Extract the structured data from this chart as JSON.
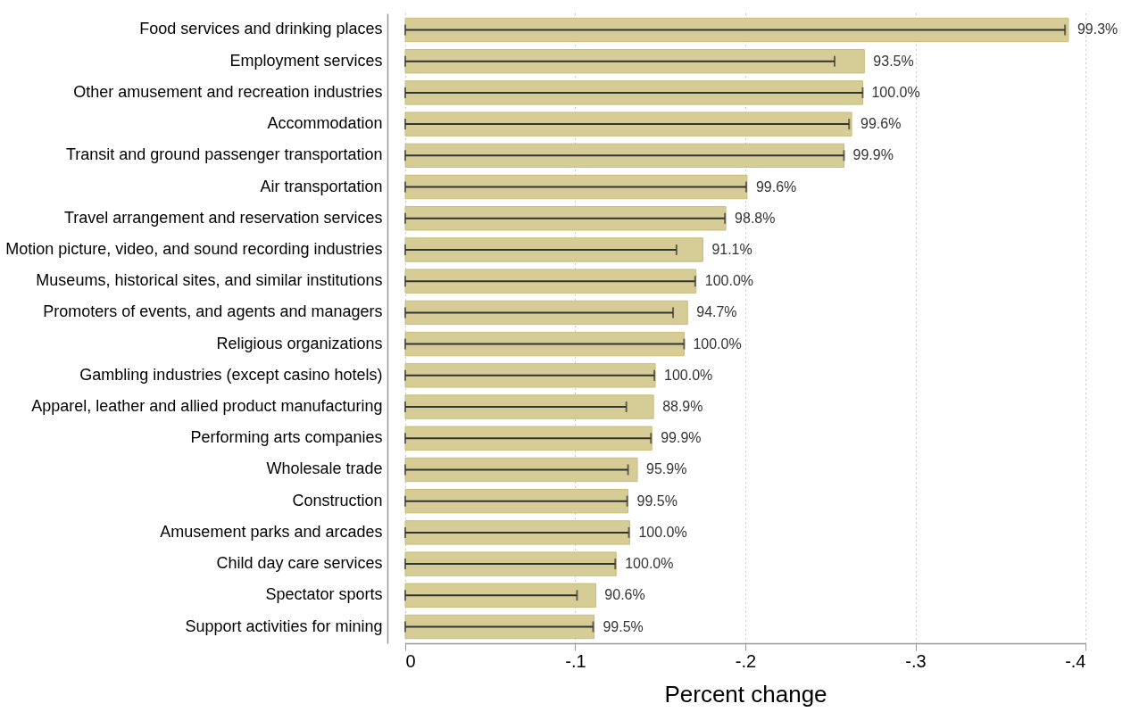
{
  "chart_data": {
    "type": "bar",
    "orientation": "horizontal",
    "xlabel": "Percent change",
    "categories": [
      "Food services and drinking places",
      "Employment services",
      "Other amusement and recreation industries",
      "Accommodation",
      "Transit and ground passenger transportation",
      "Air transportation",
      "Travel arrangement and reservation services",
      "Motion picture, video, and sound recording industries",
      "Museums, historical sites, and similar institutions",
      "Promoters of  events, and agents and managers",
      "Religious organizations",
      "Gambling industries (except casino hotels)",
      "Apparel, leather and allied product manufacturing",
      "Performing arts companies",
      "Wholesale trade",
      "Construction",
      "Amusement parks and arcades",
      "Child day care services",
      "Spectator sports",
      "Support activities for mining"
    ],
    "values": [
      -0.39,
      -0.27,
      -0.269,
      -0.2625,
      -0.258,
      -0.201,
      -0.1885,
      -0.175,
      -0.171,
      -0.166,
      -0.164,
      -0.147,
      -0.146,
      -0.145,
      -0.1365,
      -0.131,
      -0.132,
      -0.124,
      -0.112,
      -0.111
    ],
    "errors": [
      [
        0,
        -0.388
      ],
      [
        0,
        -0.2525
      ],
      [
        0,
        -0.269
      ],
      [
        0,
        -0.261
      ],
      [
        0,
        -0.258
      ],
      [
        0,
        -0.2005
      ],
      [
        0,
        -0.188
      ],
      [
        0,
        -0.1595
      ],
      [
        0,
        -0.1705
      ],
      [
        0,
        -0.1575
      ],
      [
        0,
        -0.164
      ],
      [
        0,
        -0.1465
      ],
      [
        0,
        -0.13
      ],
      [
        0,
        -0.1445
      ],
      [
        0,
        -0.131
      ],
      [
        0,
        -0.1305
      ],
      [
        0,
        -0.1315
      ],
      [
        0,
        -0.1235
      ],
      [
        0,
        -0.101
      ],
      [
        0,
        -0.1105
      ]
    ],
    "annotations": [
      {
        "text": "99.3%",
        "x": -0.39,
        "y": "Food services and drinking places"
      },
      {
        "text": "93.5%",
        "x": -0.27,
        "y": "Employment services"
      },
      {
        "text": "100.0%",
        "x": -0.269,
        "y": "Other amusement and recreation industries"
      },
      {
        "text": "99.6%",
        "x": -0.2625,
        "y": "Accommodation"
      },
      {
        "text": "99.9%",
        "x": -0.258,
        "y": "Transit and ground passenger transportation"
      },
      {
        "text": "99.6%",
        "x": -0.201,
        "y": "Air transportation"
      },
      {
        "text": "98.8%",
        "x": -0.1885,
        "y": "Travel arrangement and reservation services"
      },
      {
        "text": "91.1%",
        "x": -0.175,
        "y": "Motion picture, video, and sound recording industries"
      },
      {
        "text": "100.0%",
        "x": -0.171,
        "y": "Museums, historical sites, and similar institutions"
      },
      {
        "text": "94.7%",
        "x": -0.166,
        "y": "Promoters of  events, and agents and managers"
      },
      {
        "text": "100.0%",
        "x": -0.164,
        "y": "Religious organizations"
      },
      {
        "text": "100.0%",
        "x": -0.147,
        "y": "Gambling industries (except casino hotels)"
      },
      {
        "text": "88.9%",
        "x": -0.146,
        "y": "Apparel, leather and allied product manufacturing"
      },
      {
        "text": "99.9%",
        "x": -0.145,
        "y": "Performing arts companies"
      },
      {
        "text": "95.9%",
        "x": -0.1365,
        "y": "Wholesale trade"
      },
      {
        "text": "99.5%",
        "x": -0.131,
        "y": "Construction"
      },
      {
        "text": "100.0%",
        "x": -0.132,
        "y": "Amusement parks and arcades"
      },
      {
        "text": "100.0%",
        "x": -0.124,
        "y": "Child day care services"
      },
      {
        "text": "90.6%",
        "x": -0.112,
        "y": "Spectator sports"
      },
      {
        "text": "99.5%",
        "x": -0.111,
        "y": "Support activities for mining"
      }
    ],
    "color": "#d6cd96",
    "xlim": [
      0,
      -0.4
    ],
    "xticks": [
      0,
      {
        "value": -0.1,
        "label": "-.1"
      },
      {
        "value": -0.2,
        "label": "-.2"
      },
      {
        "value": -0.3,
        "label": "-.3"
      },
      {
        "value": -0.4,
        "label": "-.4"
      }
    ],
    "grid": "x"
  }
}
